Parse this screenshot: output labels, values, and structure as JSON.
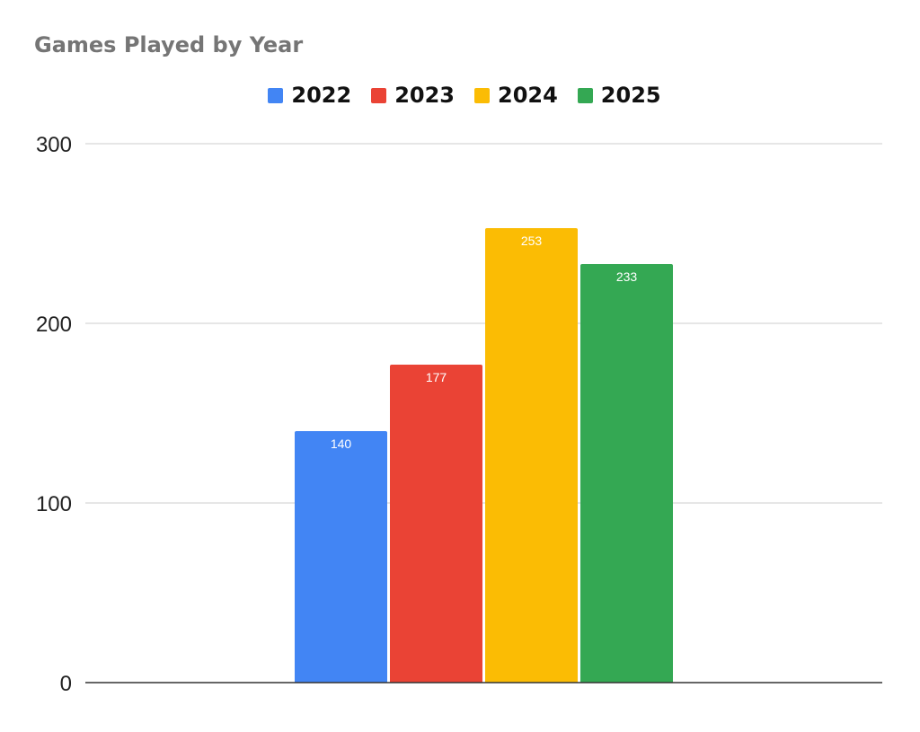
{
  "chart_data": {
    "type": "bar",
    "title": "Games Played by Year",
    "categories": [
      ""
    ],
    "series": [
      {
        "name": "2022",
        "values": [
          140
        ],
        "color": "#4285F4"
      },
      {
        "name": "2023",
        "values": [
          177
        ],
        "color": "#EA4335"
      },
      {
        "name": "2024",
        "values": [
          253
        ],
        "color": "#FBBC04"
      },
      {
        "name": "2025",
        "values": [
          233
        ],
        "color": "#34A853"
      }
    ],
    "yticks": [
      0,
      100,
      200,
      300
    ],
    "ylim": [
      0,
      300
    ],
    "xlabel": "",
    "ylabel": "",
    "grid": true,
    "legend_position": "top-center",
    "data_labels": true
  }
}
